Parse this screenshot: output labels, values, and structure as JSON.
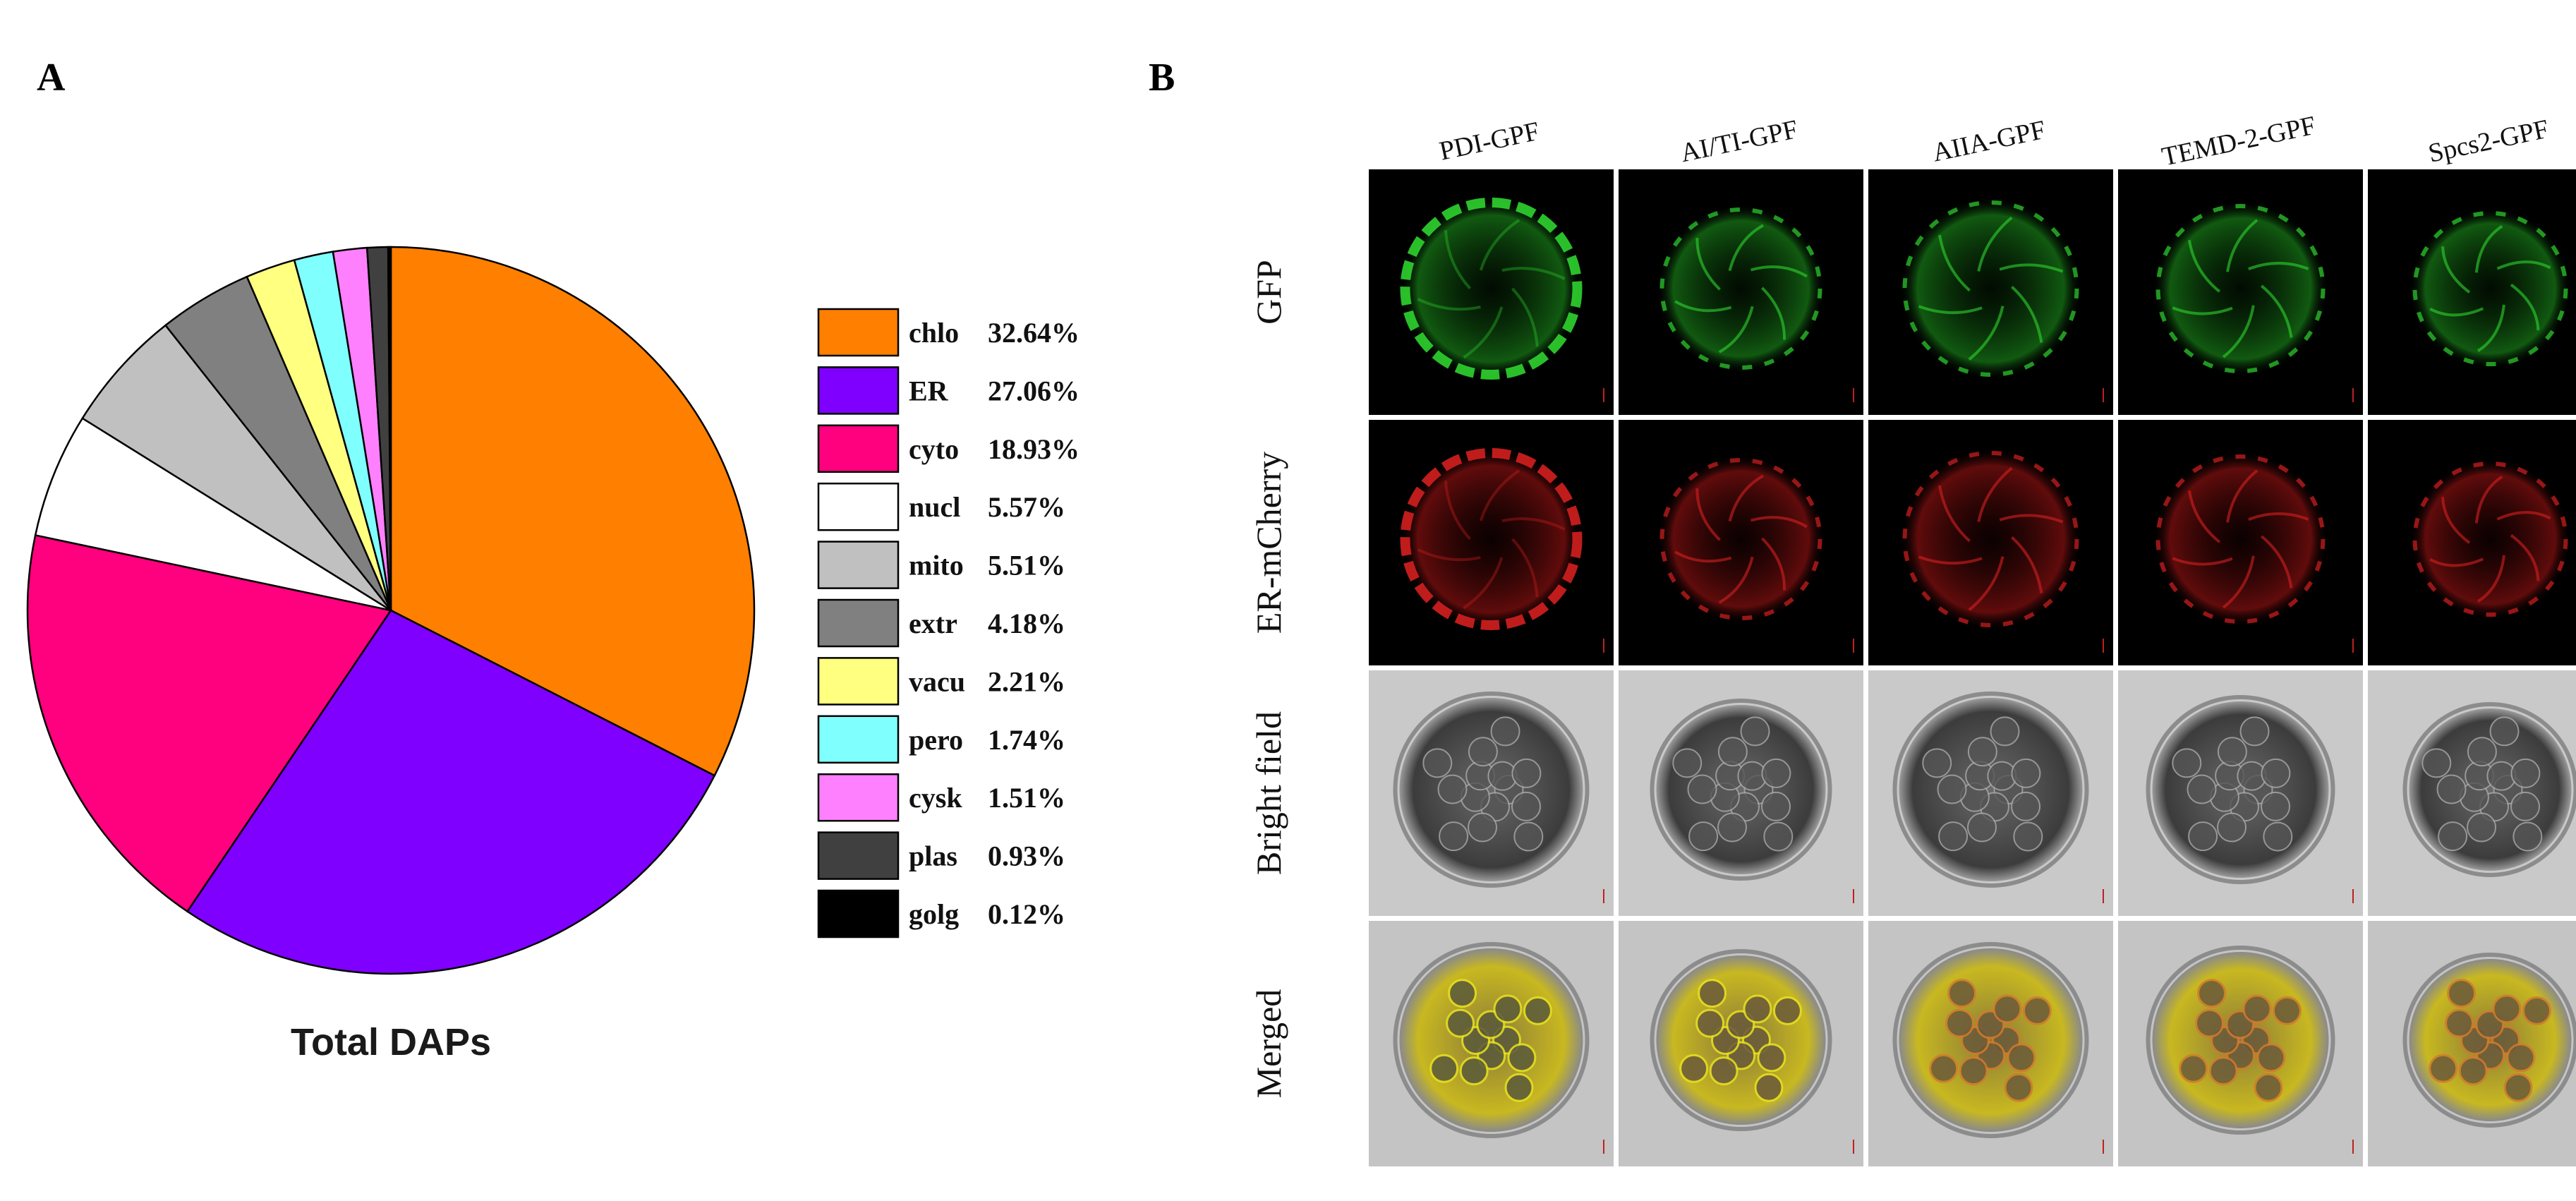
{
  "panel_a": {
    "label": "A"
  },
  "panel_b": {
    "label": "B",
    "columns": [
      "PDI-GPF",
      "AI/TI-GPF",
      "AIIA-GPF",
      "TEMD-2-GPF",
      "Spcs2-GPF"
    ],
    "rows": [
      "GFP",
      "ER-mCherry",
      "Bright field",
      "Merged"
    ]
  },
  "chart_data": {
    "type": "pie",
    "title": "Total DAPs",
    "start": "12 o'clock",
    "direction": "clockwise",
    "legend_position": "right",
    "slices": [
      {
        "label": "chlo",
        "value": 32.64,
        "text": "32.64%",
        "color": "#FF7F00"
      },
      {
        "label": "ER",
        "value": 27.06,
        "text": "27.06%",
        "color": "#7F00FF"
      },
      {
        "label": "cyto",
        "value": 18.93,
        "text": "18.93%",
        "color": "#FF007F"
      },
      {
        "label": "nucl",
        "value": 5.57,
        "text": "5.57%",
        "color": "#FFFFFF"
      },
      {
        "label": "mito",
        "value": 5.51,
        "text": "5.51%",
        "color": "#C0C0C0"
      },
      {
        "label": "extr",
        "value": 4.18,
        "text": "4.18%",
        "color": "#808080"
      },
      {
        "label": "vacu",
        "value": 2.21,
        "text": "2.21%",
        "color": "#FFFF80"
      },
      {
        "label": "pero",
        "value": 1.74,
        "text": "1.74%",
        "color": "#80FFFF"
      },
      {
        "label": "cysk",
        "value": 1.51,
        "text": "1.51%",
        "color": "#FF80FF"
      },
      {
        "label": "plas",
        "value": 0.93,
        "text": "0.93%",
        "color": "#404040"
      },
      {
        "label": "golg",
        "value": 0.12,
        "text": "0.12%",
        "color": "#000000"
      }
    ]
  }
}
